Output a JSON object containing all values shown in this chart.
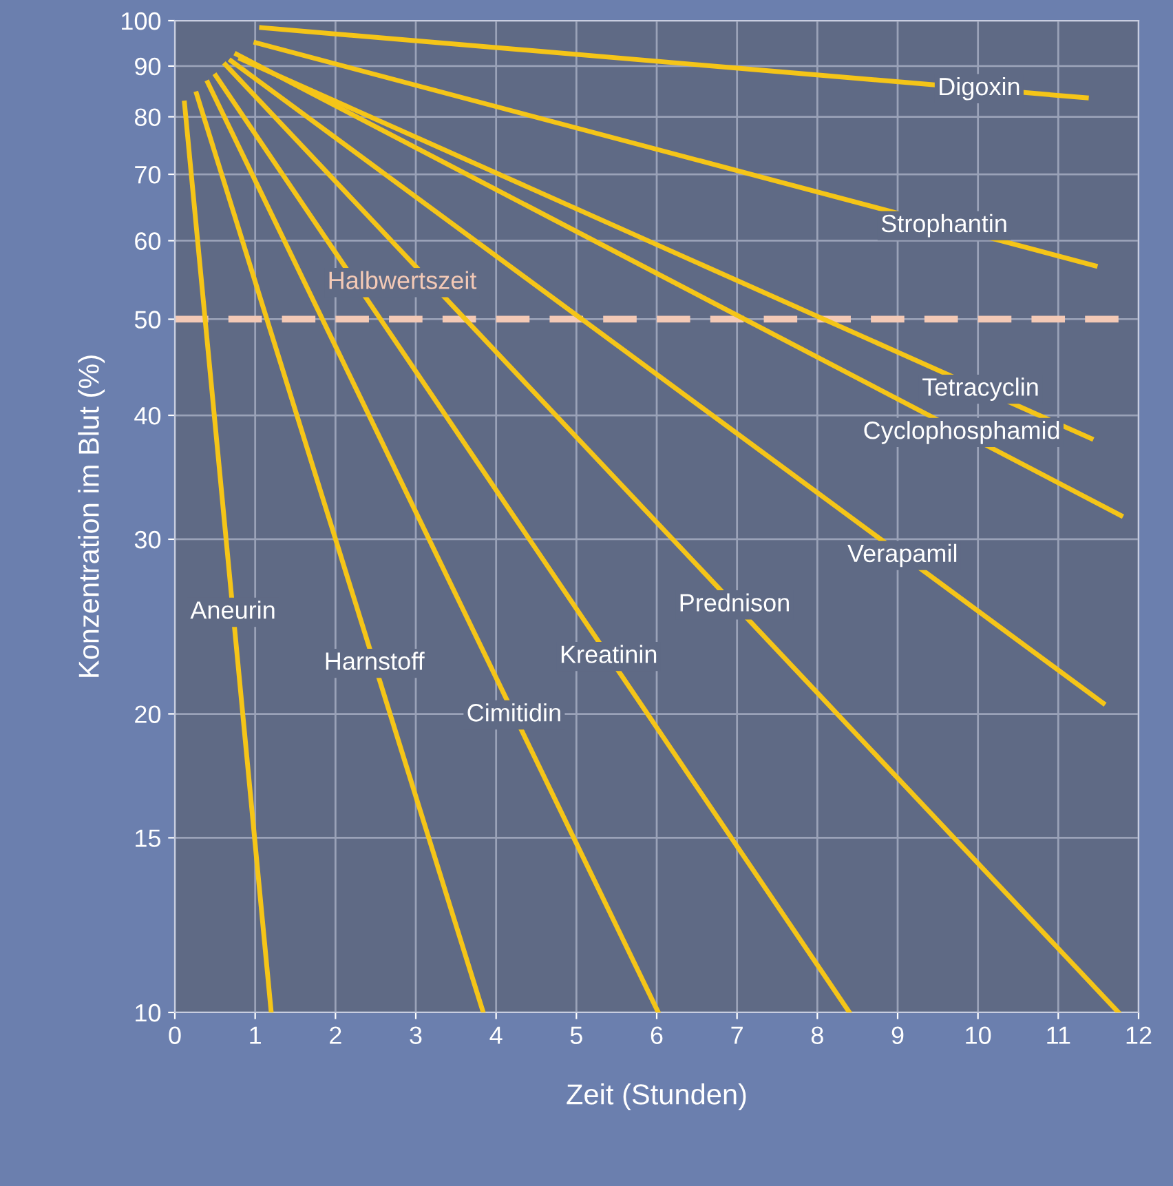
{
  "chart_data": {
    "type": "line",
    "xlabel": "Zeit (Stunden)",
    "ylabel": "Konzentration im Blut (%)",
    "log": "y",
    "xlim": [
      0,
      12
    ],
    "xticks": [
      0,
      1,
      2,
      3,
      4,
      5,
      6,
      7,
      8,
      9,
      10,
      11,
      12
    ],
    "ylim": [
      10,
      100
    ],
    "yticks": [
      10,
      15,
      20,
      30,
      40,
      50,
      60,
      70,
      80,
      90,
      100
    ],
    "grid": true,
    "line_style": "solid",
    "marker": "none",
    "ref_lines": [
      {
        "axis": "y",
        "value": 50,
        "label": "Halbwertszeit",
        "color": "#f3c9b6",
        "line_style": "dashed"
      }
    ],
    "series": [
      {
        "name": "Aneurin",
        "color": "#f5c518",
        "x": [
          0.12,
          1.2
        ],
        "values": [
          82.6,
          10
        ]
      },
      {
        "name": "Harnstoff",
        "color": "#f5c518",
        "x": [
          0.27,
          3.84
        ],
        "values": [
          84.4,
          10
        ]
      },
      {
        "name": "Cimitidin",
        "color": "#f5c518",
        "x": [
          0.41,
          6.02
        ],
        "values": [
          86.6,
          10
        ]
      },
      {
        "name": "Kreatinin",
        "color": "#f5c518",
        "x": [
          0.51,
          8.4
        ],
        "values": [
          88,
          10
        ]
      },
      {
        "name": "Prednison",
        "color": "#f5c518",
        "x": [
          0.63,
          11.75
        ],
        "values": [
          90.3,
          10
        ]
      },
      {
        "name": "Verapamil",
        "color": "#f5c518",
        "x": [
          0.7,
          11.56
        ],
        "values": [
          91.1,
          20.5
        ]
      },
      {
        "name": "Cyclophosphamid",
        "color": "#f5c518",
        "x": [
          0.77,
          11.78
        ],
        "values": [
          92.5,
          31.7
        ]
      },
      {
        "name": "Tetracyclin",
        "color": "#f5c518",
        "x": [
          0.82,
          11.41
        ],
        "values": [
          91.5,
          37.9
        ]
      },
      {
        "name": "Strophantin",
        "color": "#f5c518",
        "x": [
          1.01,
          11.46
        ],
        "values": [
          95,
          56.6
        ]
      },
      {
        "name": "Digoxin",
        "color": "#f5c518",
        "x": [
          1.08,
          11.35
        ],
        "values": [
          98.4,
          83.6
        ]
      }
    ]
  }
}
